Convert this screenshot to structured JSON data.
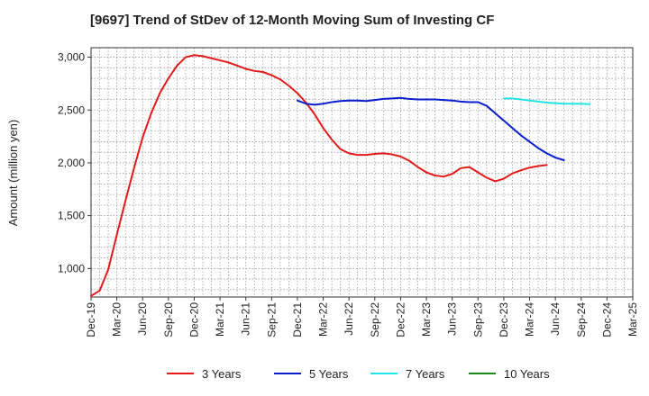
{
  "chart_data": {
    "type": "line",
    "title": "[9697]  Trend of StDev of 12-Month Moving Sum of Investing CF",
    "ylabel": "Amount (million yen)",
    "xlabel": "",
    "ylim": [
      730,
      3090
    ],
    "y_ticks": [
      1000,
      1500,
      2000,
      2500,
      3000
    ],
    "y_tick_labels": [
      "1,000",
      "1,500",
      "2,000",
      "2,500",
      "3,000"
    ],
    "x_tick_labels": [
      "Dec-19",
      "Mar-20",
      "Jun-20",
      "Sep-20",
      "Dec-20",
      "Mar-21",
      "Jun-21",
      "Sep-21",
      "Dec-21",
      "Mar-22",
      "Jun-22",
      "Sep-22",
      "Dec-22",
      "Mar-23",
      "Jun-23",
      "Sep-23",
      "Dec-23",
      "Mar-24",
      "Jun-24",
      "Sep-24",
      "Dec-24",
      "Mar-25"
    ],
    "grid": true,
    "legend_position": "bottom",
    "series": [
      {
        "name": "3 Years",
        "color": "#e31a1c",
        "points": [
          [
            0,
            740
          ],
          [
            1,
            790
          ],
          [
            2,
            990
          ],
          [
            3,
            1320
          ],
          [
            4,
            1640
          ],
          [
            5,
            1950
          ],
          [
            6,
            2240
          ],
          [
            7,
            2470
          ],
          [
            8,
            2660
          ],
          [
            9,
            2800
          ],
          [
            10,
            2920
          ],
          [
            11,
            3000
          ],
          [
            12,
            3020
          ],
          [
            13,
            3010
          ],
          [
            14,
            2990
          ],
          [
            15,
            2970
          ],
          [
            16,
            2950
          ],
          [
            17,
            2920
          ],
          [
            18,
            2890
          ],
          [
            19,
            2870
          ],
          [
            20,
            2860
          ],
          [
            21,
            2830
          ],
          [
            22,
            2790
          ],
          [
            23,
            2730
          ],
          [
            24,
            2660
          ],
          [
            25,
            2570
          ],
          [
            26,
            2460
          ],
          [
            27,
            2330
          ],
          [
            28,
            2220
          ],
          [
            29,
            2130
          ],
          [
            30,
            2090
          ],
          [
            31,
            2075
          ],
          [
            32,
            2075
          ],
          [
            33,
            2085
          ],
          [
            34,
            2090
          ],
          [
            35,
            2080
          ],
          [
            36,
            2060
          ],
          [
            37,
            2020
          ],
          [
            38,
            1960
          ],
          [
            39,
            1910
          ],
          [
            40,
            1880
          ],
          [
            41,
            1870
          ],
          [
            42,
            1895
          ],
          [
            43,
            1950
          ],
          [
            44,
            1960
          ],
          [
            45,
            1910
          ],
          [
            46,
            1860
          ],
          [
            47,
            1825
          ],
          [
            48,
            1850
          ],
          [
            49,
            1900
          ],
          [
            50,
            1930
          ],
          [
            51,
            1955
          ],
          [
            52,
            1970
          ],
          [
            53,
            1980
          ]
        ]
      },
      {
        "name": "5 Years",
        "color": "#0a1fcc",
        "points": [
          [
            24,
            2590
          ],
          [
            25,
            2560
          ],
          [
            26,
            2550
          ],
          [
            27,
            2560
          ],
          [
            28,
            2575
          ],
          [
            29,
            2585
          ],
          [
            30,
            2590
          ],
          [
            31,
            2590
          ],
          [
            32,
            2585
          ],
          [
            33,
            2595
          ],
          [
            34,
            2605
          ],
          [
            35,
            2610
          ],
          [
            36,
            2615
          ],
          [
            37,
            2605
          ],
          [
            38,
            2600
          ],
          [
            39,
            2600
          ],
          [
            40,
            2600
          ],
          [
            41,
            2595
          ],
          [
            42,
            2590
          ],
          [
            43,
            2580
          ],
          [
            44,
            2575
          ],
          [
            45,
            2575
          ],
          [
            46,
            2540
          ],
          [
            47,
            2470
          ],
          [
            48,
            2400
          ],
          [
            49,
            2330
          ],
          [
            50,
            2260
          ],
          [
            51,
            2200
          ],
          [
            52,
            2140
          ],
          [
            53,
            2090
          ],
          [
            54,
            2050
          ],
          [
            55,
            2025
          ]
        ]
      },
      {
        "name": "7 Years",
        "color": "#22e5e5",
        "points": [
          [
            48,
            2610
          ],
          [
            49,
            2610
          ],
          [
            50,
            2600
          ],
          [
            51,
            2590
          ],
          [
            52,
            2580
          ],
          [
            53,
            2570
          ],
          [
            54,
            2565
          ],
          [
            55,
            2560
          ],
          [
            56,
            2560
          ],
          [
            57,
            2560
          ],
          [
            58,
            2555
          ]
        ]
      },
      {
        "name": "10 Years",
        "color": "#1a8a1a",
        "points": []
      }
    ]
  }
}
